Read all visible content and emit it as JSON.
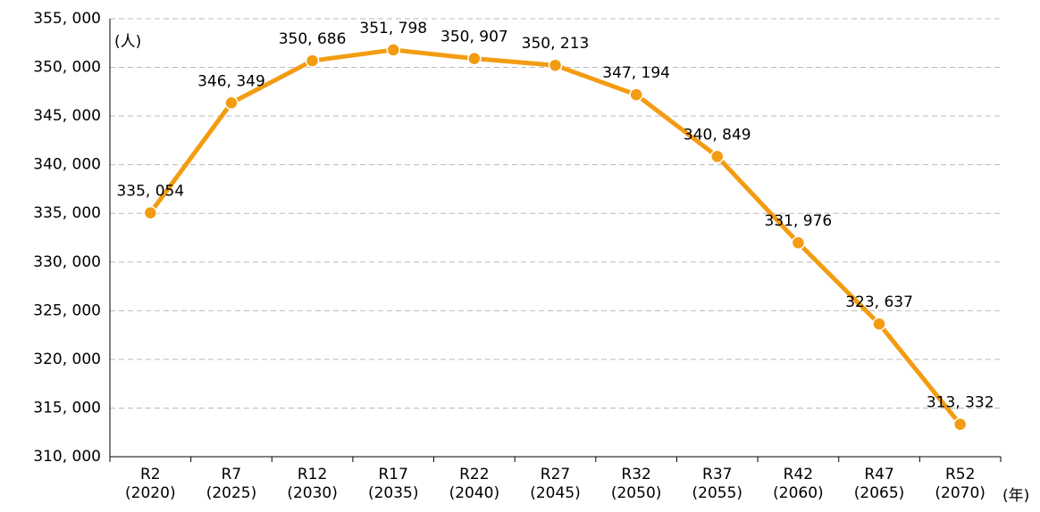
{
  "chart_data": {
    "type": "line",
    "y_unit": "(人)",
    "x_unit": "(年)",
    "categories": [
      [
        "R2",
        "(2020)"
      ],
      [
        "R7",
        "(2025)"
      ],
      [
        "R12",
        "(2030)"
      ],
      [
        "R17",
        "(2035)"
      ],
      [
        "R22",
        "(2040)"
      ],
      [
        "R27",
        "(2045)"
      ],
      [
        "R32",
        "(2050)"
      ],
      [
        "R37",
        "(2055)"
      ],
      [
        "R42",
        "(2060)"
      ],
      [
        "R47",
        "(2065)"
      ],
      [
        "R52",
        "(2070)"
      ]
    ],
    "series": [
      {
        "color": "#f39c12",
        "values": [
          335054,
          346349,
          350686,
          351798,
          350907,
          350213,
          347194,
          340849,
          331976,
          323637,
          313332
        ],
        "value_labels": [
          "335, 054",
          "346, 349",
          "350, 686",
          "351, 798",
          "350, 907",
          "350, 213",
          "347, 194",
          "340, 849",
          "331, 976",
          "323, 637",
          "313, 332"
        ]
      }
    ],
    "ylim": [
      310000,
      355000
    ],
    "yticks": [
      {
        "value": 310000,
        "label": "310, 000"
      },
      {
        "value": 315000,
        "label": "315, 000"
      },
      {
        "value": 320000,
        "label": "320, 000"
      },
      {
        "value": 325000,
        "label": "325, 000"
      },
      {
        "value": 330000,
        "label": "330, 000"
      },
      {
        "value": 335000,
        "label": "335, 000"
      },
      {
        "value": 340000,
        "label": "340, 000"
      },
      {
        "value": 345000,
        "label": "345, 000"
      },
      {
        "value": 350000,
        "label": "350, 000"
      },
      {
        "value": 355000,
        "label": "355, 000"
      }
    ],
    "grid": true
  }
}
